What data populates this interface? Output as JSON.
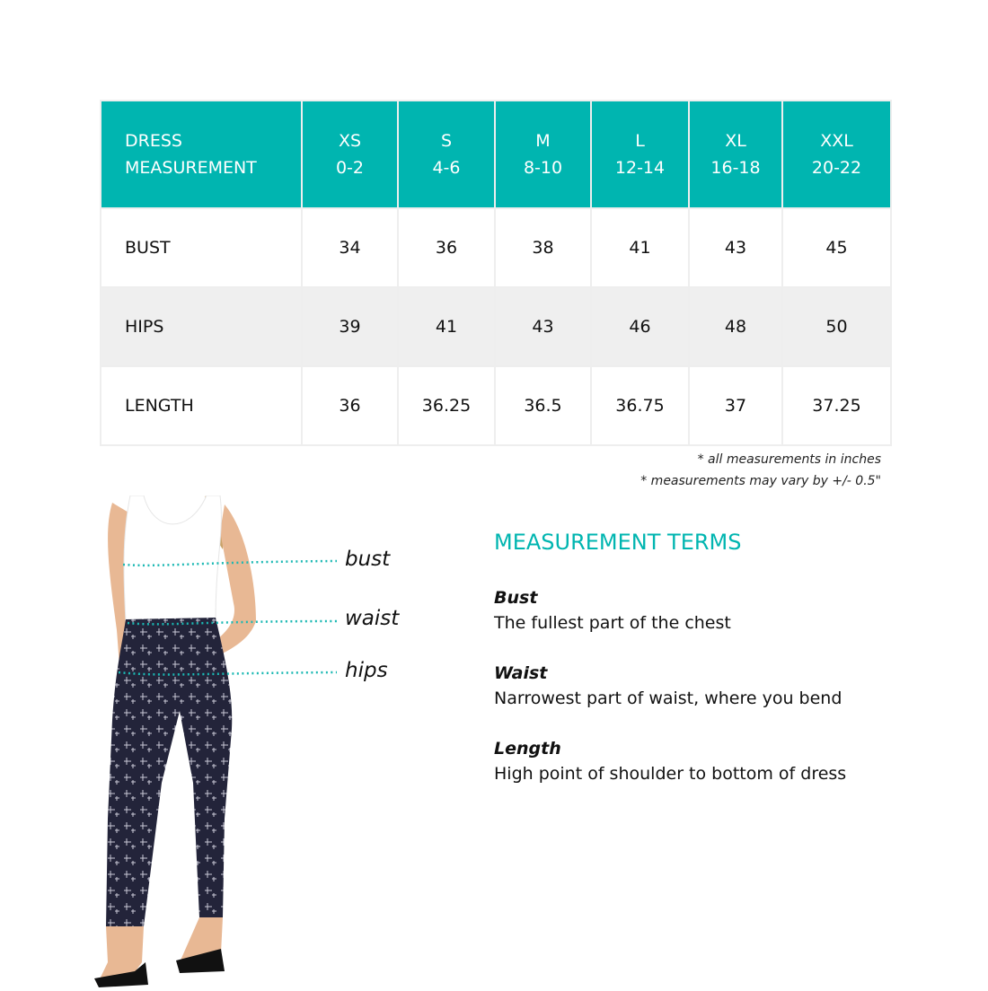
{
  "table": {
    "header": {
      "label_line1": "DRESS",
      "label_line2": "MEASUREMENT",
      "sizes": [
        {
          "size": "XS",
          "range": "0-2"
        },
        {
          "size": "S",
          "range": "4-6"
        },
        {
          "size": "M",
          "range": "8-10"
        },
        {
          "size": "L",
          "range": "12-14"
        },
        {
          "size": "XL",
          "range": "16-18"
        },
        {
          "size": "XXL",
          "range": "20-22"
        }
      ]
    },
    "rows": [
      {
        "label": "BUST",
        "values": [
          "34",
          "36",
          "38",
          "41",
          "43",
          "45"
        ]
      },
      {
        "label": "HIPS",
        "values": [
          "39",
          "41",
          "43",
          "46",
          "48",
          "50"
        ]
      },
      {
        "label": "LENGTH",
        "values": [
          "36",
          "36.25",
          "36.5",
          "36.75",
          "37",
          "37.25"
        ]
      }
    ]
  },
  "notes": [
    "* all measurements in inches",
    "* measurements may vary by +/- 0.5\""
  ],
  "figure": {
    "labels": [
      "bust",
      "waist",
      "hips"
    ]
  },
  "terms": {
    "title": "MEASUREMENT TERMS",
    "items": [
      {
        "term": "Bust",
        "desc": "The fullest part of the chest"
      },
      {
        "term": "Waist",
        "desc": "Narrowest part of waist, where you bend"
      },
      {
        "term": "Length",
        "desc": "High point of shoulder to bottom of dress"
      }
    ]
  },
  "colors": {
    "accent": "#00b5b0",
    "alt_row": "#efefef",
    "pants": "#23243a"
  }
}
